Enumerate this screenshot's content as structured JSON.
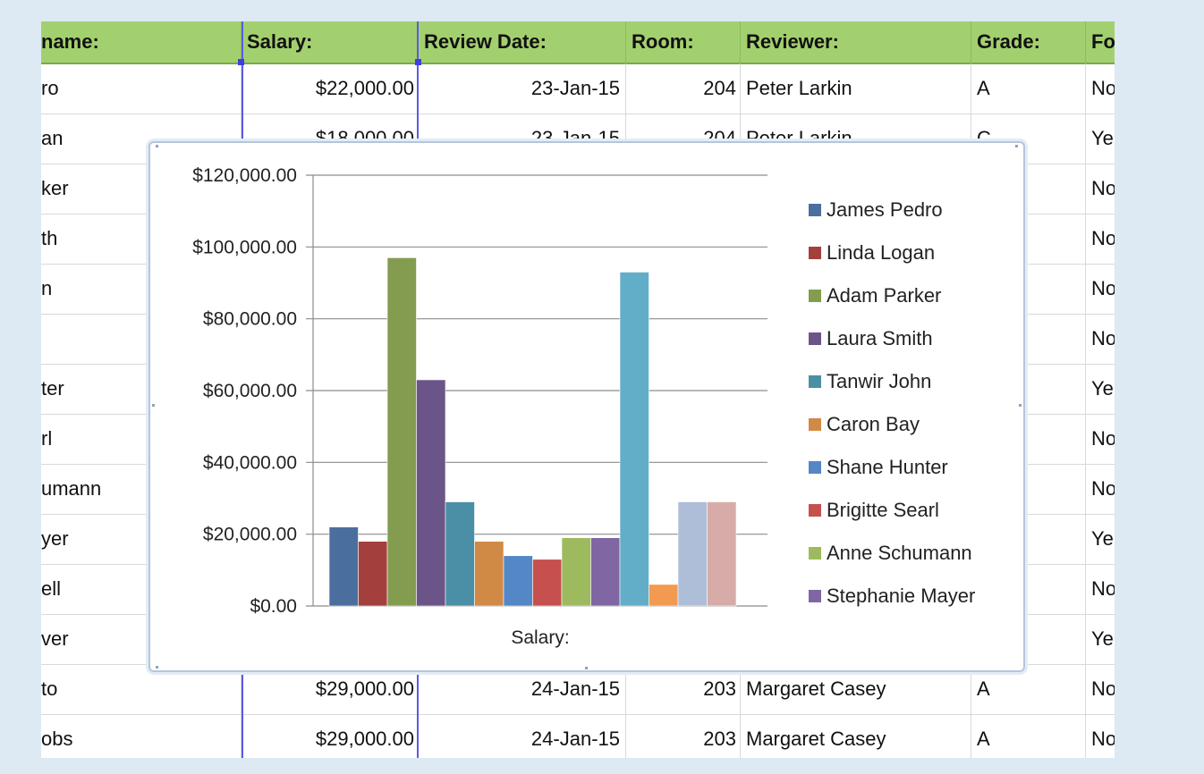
{
  "sheet": {
    "headers": [
      "name:",
      "Salary:",
      "Review Date:",
      "Room:",
      "Reviewer:",
      "Grade:",
      "Fo"
    ],
    "rows": [
      [
        "ro",
        "$22,000.00",
        "23-Jan-15",
        "204",
        "Peter Larkin",
        "A",
        "No"
      ],
      [
        "an",
        "$18,000.00",
        "23-Jan-15",
        "204",
        "Peter Larkin",
        "C",
        "Ye"
      ],
      [
        "ker",
        "",
        "",
        "",
        "",
        "",
        "No"
      ],
      [
        "th",
        "",
        "",
        "",
        "",
        "",
        "No"
      ],
      [
        "n",
        "",
        "",
        "",
        "",
        "",
        "No"
      ],
      [
        "",
        "",
        "",
        "",
        "",
        "",
        "No"
      ],
      [
        "ter",
        "",
        "",
        "",
        "",
        "",
        "Ye"
      ],
      [
        "rl",
        "",
        "",
        "",
        "",
        "",
        "No"
      ],
      [
        "umann",
        "",
        "",
        "",
        "",
        "",
        "No"
      ],
      [
        "yer",
        "",
        "",
        "",
        "",
        "",
        "Ye"
      ],
      [
        "ell",
        "",
        "",
        "",
        "",
        "",
        "No"
      ],
      [
        "ver",
        "",
        "",
        "",
        "",
        "",
        "Ye"
      ],
      [
        "to",
        "$29,000.00",
        "24-Jan-15",
        "203",
        "Margaret Casey",
        "A",
        "No"
      ],
      [
        "obs",
        "$29,000.00",
        "24-Jan-15",
        "203",
        "Margaret Casey",
        "A",
        "No"
      ]
    ]
  },
  "chart_data": {
    "type": "bar",
    "title": "",
    "xlabel": "Salary:",
    "ylabel": "",
    "ylim": [
      0,
      120000
    ],
    "yticks": [
      "$0.00",
      "$20,000.00",
      "$40,000.00",
      "$60,000.00",
      "$80,000.00",
      "$100,000.00",
      "$120,000.00"
    ],
    "categories": [
      "Salary:"
    ],
    "legend_position": "right",
    "series": [
      {
        "name": "James Pedro",
        "value": 22000,
        "color": "#4a6f9f"
      },
      {
        "name": "Linda Logan",
        "value": 18000,
        "color": "#a3403d"
      },
      {
        "name": "Adam Parker",
        "value": 97000,
        "color": "#839c4f"
      },
      {
        "name": "Laura Smith",
        "value": 63000,
        "color": "#6b5588"
      },
      {
        "name": "Tanwir John",
        "value": 29000,
        "color": "#4a8fa5"
      },
      {
        "name": "Caron Bay",
        "value": 18000,
        "color": "#d08a46"
      },
      {
        "name": "Shane Hunter",
        "value": 14000,
        "color": "#5487c5"
      },
      {
        "name": "Brigitte Searl",
        "value": 13000,
        "color": "#c6504e"
      },
      {
        "name": "Anne Schumann",
        "value": 19000,
        "color": "#9dbb5e"
      },
      {
        "name": "Stephanie Mayer",
        "value": 19000,
        "color": "#8066a3"
      },
      {
        "name": "",
        "value": 93000,
        "color": "#62aec8"
      },
      {
        "name": "",
        "value": 6000,
        "color": "#f29a50"
      },
      {
        "name": "",
        "value": 29000,
        "color": "#aebdd8"
      },
      {
        "name": "",
        "value": 29000,
        "color": "#d7aca8"
      }
    ]
  }
}
